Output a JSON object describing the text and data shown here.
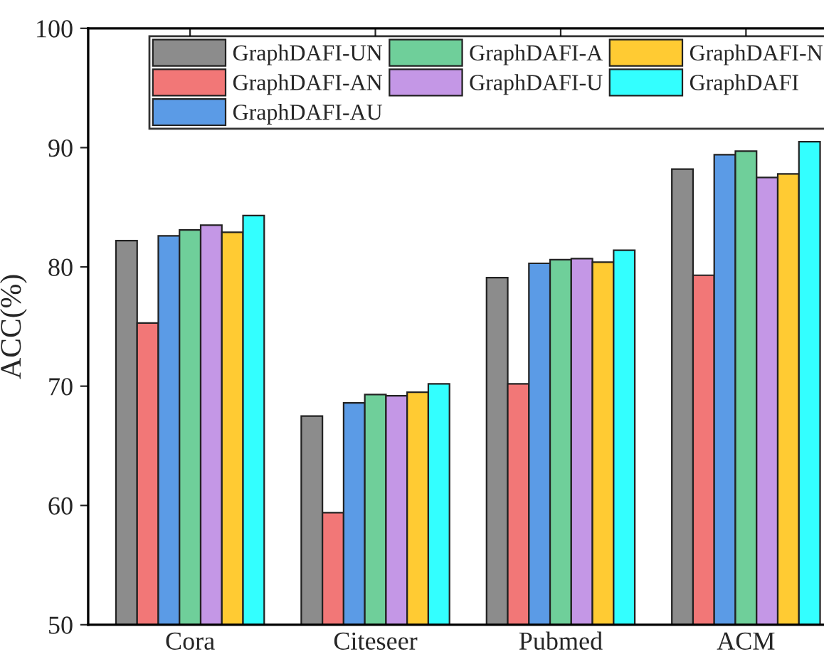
{
  "chart_data": {
    "type": "bar",
    "ylabel": "ACC(%)",
    "categories": [
      "Cora",
      "Citeseer",
      "Pubmed",
      "ACM"
    ],
    "series": [
      {
        "name": "GraphDAFI-UN",
        "color": "#8c8c8c",
        "values": [
          82.2,
          67.5,
          79.1,
          88.2
        ]
      },
      {
        "name": "GraphDAFI-AN",
        "color": "#f27777",
        "values": [
          75.3,
          59.4,
          70.2,
          79.3
        ]
      },
      {
        "name": "GraphDAFI-AU",
        "color": "#5b9be6",
        "values": [
          82.6,
          68.6,
          80.3,
          89.4
        ]
      },
      {
        "name": "GraphDAFI-A",
        "color": "#6fcf9a",
        "values": [
          83.1,
          69.3,
          80.6,
          89.7
        ]
      },
      {
        "name": "GraphDAFI-U",
        "color": "#c497e6",
        "values": [
          83.5,
          69.2,
          80.7,
          87.5
        ]
      },
      {
        "name": "GraphDAFI-N",
        "color": "#ffcb33",
        "values": [
          82.9,
          69.5,
          80.4,
          87.8
        ]
      },
      {
        "name": "GraphDAFI",
        "color": "#33ffff",
        "values": [
          84.3,
          70.2,
          81.4,
          90.5
        ]
      }
    ],
    "ylim": [
      50,
      100
    ],
    "yticks": [
      50,
      60,
      70,
      80,
      90,
      100
    ],
    "grid": false,
    "legend": "top right"
  }
}
